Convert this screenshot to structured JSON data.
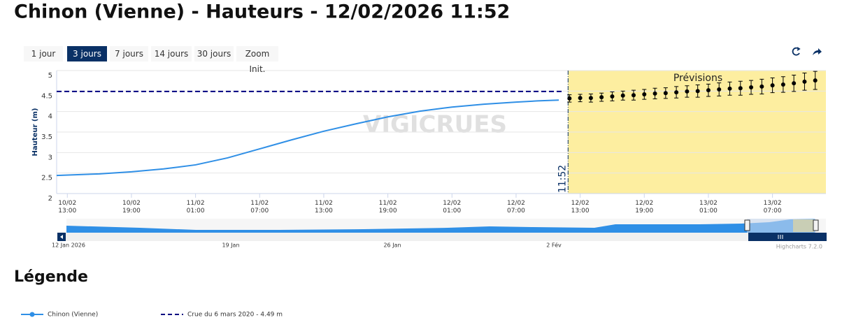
{
  "title": "Chinon (Vienne) - Hauteurs - 12/02/2026 11:52",
  "buttons": [
    "1 jour",
    "3 jours",
    "7 jours",
    "14 jours",
    "30 jours",
    "Zoom Init."
  ],
  "selected_button": "3 jours",
  "chart_data": {
    "type": "line",
    "ylabel": "Hauteur (m)",
    "watermark": "VIGICRUES",
    "xlim": [
      "10/02 12:00",
      "13/02 12:00"
    ],
    "xticks": [
      "10/02 13:00",
      "10/02 19:00",
      "11/02 01:00",
      "11/02 07:00",
      "11/02 13:00",
      "11/02 19:00",
      "12/02 01:00",
      "12/02 07:00",
      "12/02 13:00",
      "12/02 19:00",
      "13/02 01:00",
      "13/02 07:00"
    ],
    "ylim": [
      2,
      5
    ],
    "yticks": [
      2,
      2.5,
      3,
      3.5,
      4,
      4.5,
      5
    ],
    "grid": true,
    "series": [
      {
        "name": "Chinon (Vienne)",
        "color": "#2f8fe6",
        "x": [
          "10/02 12:00",
          "10/02 16:00",
          "10/02 19:00",
          "10/02 22:00",
          "11/02 01:00",
          "11/02 04:00",
          "11/02 07:00",
          "11/02 10:00",
          "11/02 13:00",
          "11/02 16:00",
          "11/02 19:00",
          "11/02 22:00",
          "12/02 01:00",
          "12/02 04:00",
          "12/02 07:00",
          "12/02 09:00",
          "12/02 11:00"
        ],
        "values": [
          2.44,
          2.48,
          2.53,
          2.6,
          2.7,
          2.87,
          3.09,
          3.31,
          3.52,
          3.7,
          3.87,
          4.01,
          4.11,
          4.18,
          4.23,
          4.26,
          4.28
        ]
      },
      {
        "name": "Prévisions",
        "color": "#000000",
        "type": "errorbar",
        "x": [
          "12/02 12:00",
          "12/02 13:00",
          "12/02 14:00",
          "12/02 15:00",
          "12/02 16:00",
          "12/02 17:00",
          "12/02 18:00",
          "12/02 19:00",
          "12/02 20:00",
          "12/02 21:00",
          "12/02 22:00",
          "12/02 23:00",
          "13/02 00:00",
          "13/02 01:00",
          "13/02 02:00",
          "13/02 03:00",
          "13/02 04:00",
          "13/02 05:00",
          "13/02 06:00",
          "13/02 07:00",
          "13/02 08:00",
          "13/02 09:00",
          "13/02 10:00",
          "13/02 11:00"
        ],
        "values": [
          4.32,
          4.33,
          4.33,
          4.35,
          4.37,
          4.39,
          4.4,
          4.42,
          4.44,
          4.45,
          4.47,
          4.49,
          4.5,
          4.52,
          4.54,
          4.56,
          4.57,
          4.59,
          4.61,
          4.64,
          4.66,
          4.69,
          4.73,
          4.76
        ],
        "errors": [
          0.09,
          0.09,
          0.1,
          0.1,
          0.11,
          0.11,
          0.12,
          0.12,
          0.13,
          0.13,
          0.14,
          0.14,
          0.15,
          0.15,
          0.16,
          0.16,
          0.17,
          0.17,
          0.18,
          0.18,
          0.19,
          0.2,
          0.21,
          0.22
        ]
      }
    ],
    "plot_lines": [
      {
        "name": "Crue du 6 mars 2020 - 4.49 m",
        "value": 4.49,
        "color": "#000080"
      }
    ],
    "now_line": {
      "x": "12/02 11:52",
      "label": "11:52"
    },
    "forecast_band": {
      "from": "12/02 11:52",
      "label": "Prévisions",
      "color": "#fdeea0"
    }
  },
  "navigator": {
    "labels": [
      "12 Jan 2026",
      "19 Jan",
      "26 Jan",
      "2 Fév"
    ]
  },
  "credits": "Highcharts 7.2.0",
  "legend_title": "Légende"
}
